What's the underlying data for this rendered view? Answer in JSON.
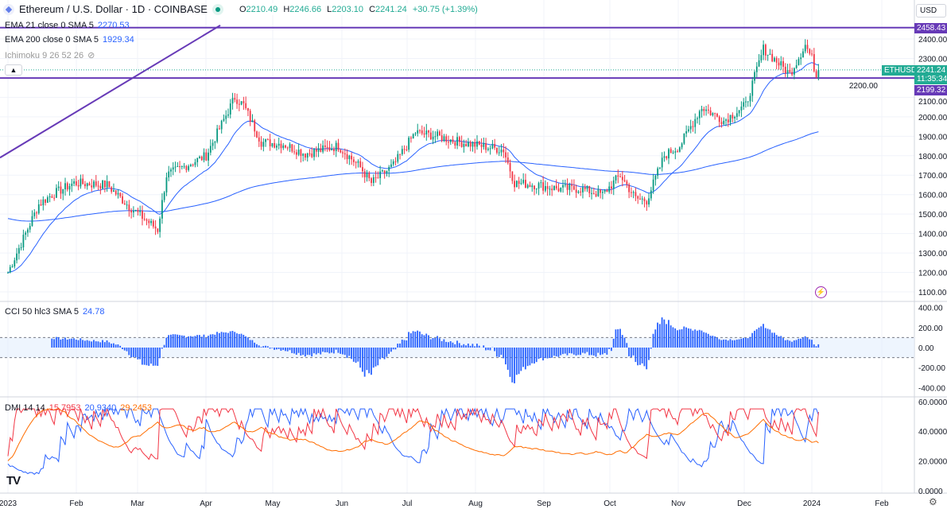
{
  "header": {
    "title": "Ethereum / U.S. Dollar · 1D · COINBASE",
    "open": "2210.49",
    "high": "2246.66",
    "low": "2203.10",
    "close": "2241.24",
    "change": "+30.75 (+1.39%)",
    "o": "O",
    "h": "H",
    "l": "L",
    "c": "C"
  },
  "indicators": {
    "ema21": {
      "label": "EMA 21 close 0 SMA 5",
      "value": "2270.53"
    },
    "ema200": {
      "label": "EMA 200 close 0 SMA 5",
      "value": "1929.34"
    },
    "ichimoku": {
      "label": "Ichimoku 9 26 52 26"
    },
    "cci": {
      "label": "CCI 50 hlc3 SMA 5",
      "value": "24.78"
    },
    "dmi": {
      "label": "DMI 14 14",
      "plus": "15.7953",
      "minus": "20.9340",
      "adx": "29.2453"
    }
  },
  "axis": {
    "currency": "USD",
    "price_ticks": [
      "2400.00",
      "2300.00",
      "2200.00",
      "2100.00",
      "2000.00",
      "1900.00",
      "1800.00",
      "1700.00",
      "1600.00",
      "1500.00",
      "1400.00",
      "1300.00",
      "1200.00",
      "1100.00"
    ],
    "cci_ticks": [
      "400.00",
      "200.00",
      "0.00",
      "-200.00",
      "-400.00"
    ],
    "dmi_ticks": [
      "60.0000",
      "40.0000",
      "20.0000",
      "0.0000"
    ],
    "time_ticks": [
      "2023",
      "Feb",
      "Mar",
      "Apr",
      "May",
      "Jun",
      "Jul",
      "Aug",
      "Sep",
      "Oct",
      "Nov",
      "Dec",
      "2024",
      "Feb"
    ]
  },
  "tags": {
    "symbol": "ETHUSD",
    "last": "2241.24",
    "countdown": "11:35:34",
    "line_high": "2458.43",
    "line_low": "2199.32"
  },
  "logo": "TV",
  "colors": {
    "up": "#089981",
    "down": "#f23645",
    "ema": "#2962ff",
    "line": "#673ab7",
    "cci": "#2962ff",
    "plus": "#2962ff",
    "minus": "#f23645",
    "adx": "#ff6d00"
  },
  "chart_data": {
    "type": "candlestick",
    "symbol": "ETHUSD",
    "interval": "1D",
    "key_closes": [
      [
        0,
        1200
      ],
      [
        14,
        1550
      ],
      [
        20,
        1600
      ],
      [
        30,
        1660
      ],
      [
        45,
        1650
      ],
      [
        55,
        1540
      ],
      [
        68,
        1420
      ],
      [
        72,
        1700
      ],
      [
        90,
        1800
      ],
      [
        103,
        2100
      ],
      [
        107,
        2060
      ],
      [
        115,
        1870
      ],
      [
        125,
        1860
      ],
      [
        135,
        1810
      ],
      [
        150,
        1850
      ],
      [
        160,
        1740
      ],
      [
        165,
        1660
      ],
      [
        175,
        1750
      ],
      [
        185,
        1920
      ],
      [
        195,
        1900
      ],
      [
        205,
        1870
      ],
      [
        215,
        1850
      ],
      [
        225,
        1830
      ],
      [
        230,
        1660
      ],
      [
        240,
        1650
      ],
      [
        250,
        1630
      ],
      [
        260,
        1630
      ],
      [
        270,
        1600
      ],
      [
        278,
        1700
      ],
      [
        285,
        1580
      ],
      [
        290,
        1570
      ],
      [
        298,
        1800
      ],
      [
        305,
        1850
      ],
      [
        315,
        2050
      ],
      [
        325,
        1980
      ],
      [
        335,
        2060
      ],
      [
        343,
        2350
      ],
      [
        355,
        2220
      ],
      [
        362,
        2370
      ],
      [
        365,
        2300
      ],
      [
        367,
        2210
      ],
      [
        368,
        2241
      ]
    ],
    "horizontal_lines": [
      2458.43,
      2199.32
    ],
    "trend_line": [
      [
        0,
        1790
      ],
      [
        100,
        2470
      ]
    ]
  }
}
